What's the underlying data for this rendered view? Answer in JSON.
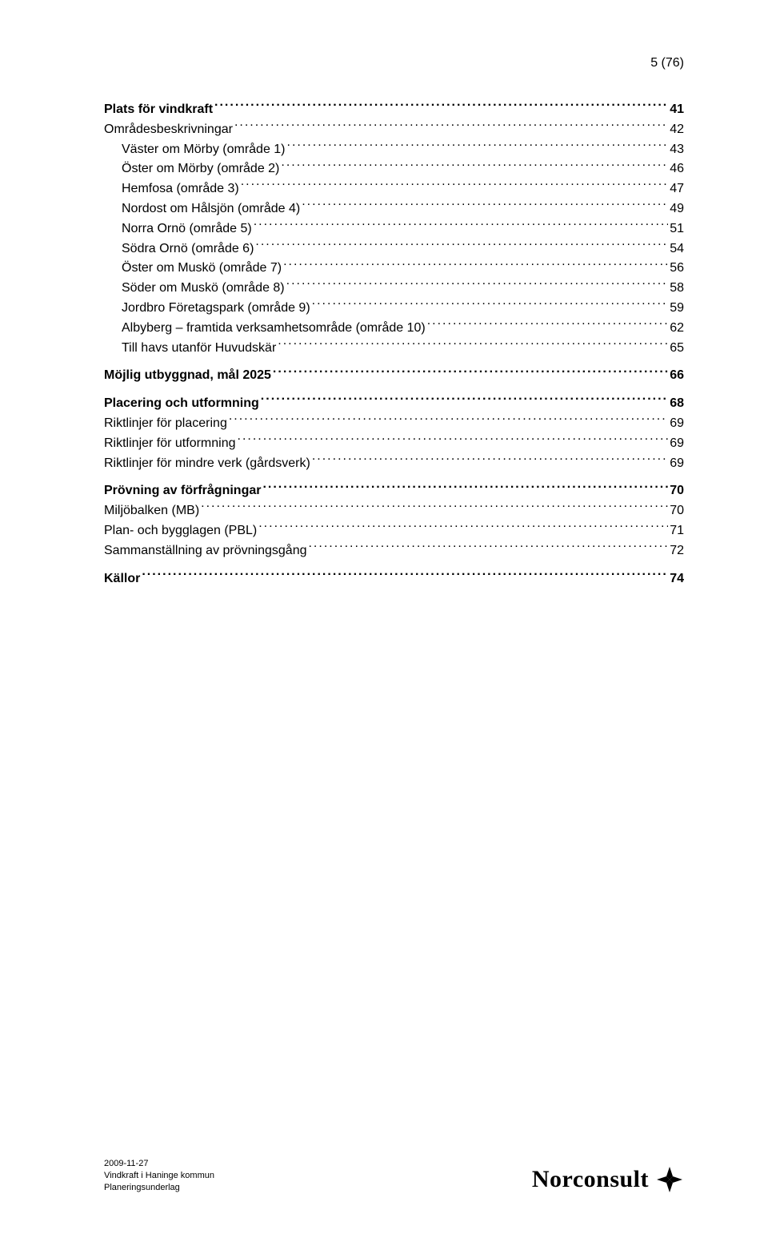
{
  "page_number": "5 (76)",
  "toc": [
    {
      "label": "Plats för vindkraft",
      "page": "41",
      "bold": true,
      "indent": 0
    },
    {
      "label": "Områdesbeskrivningar",
      "page": "42",
      "bold": false,
      "indent": 0
    },
    {
      "label": "Väster om Mörby (område 1)",
      "page": "43",
      "bold": false,
      "indent": 1
    },
    {
      "label": "Öster om Mörby (område 2)",
      "page": "46",
      "bold": false,
      "indent": 1
    },
    {
      "label": "Hemfosa (område 3)",
      "page": "47",
      "bold": false,
      "indent": 1
    },
    {
      "label": "Nordost om Hålsjön (område 4)",
      "page": "49",
      "bold": false,
      "indent": 1
    },
    {
      "label": "Norra Ornö (område 5)",
      "page": "51",
      "bold": false,
      "indent": 1
    },
    {
      "label": "Södra Ornö (område 6)",
      "page": "54",
      "bold": false,
      "indent": 1
    },
    {
      "label": "Öster om Muskö (område 7)",
      "page": "56",
      "bold": false,
      "indent": 1
    },
    {
      "label": "Söder om Muskö (område 8)",
      "page": "58",
      "bold": false,
      "indent": 1
    },
    {
      "label": "Jordbro Företagspark (område 9)",
      "page": "59",
      "bold": false,
      "indent": 1
    },
    {
      "label": "Albyberg – framtida verksamhetsområde (område 10)",
      "page": "62",
      "bold": false,
      "indent": 1
    },
    {
      "label": "Till havs utanför Huvudskär",
      "page": "65",
      "bold": false,
      "indent": 1
    },
    {
      "label": "Möjlig utbyggnad, mål 2025",
      "page": "66",
      "bold": true,
      "indent": 0
    },
    {
      "label": "Placering och utformning",
      "page": "68",
      "bold": true,
      "indent": 0
    },
    {
      "label": "Riktlinjer för placering",
      "page": "69",
      "bold": false,
      "indent": 0
    },
    {
      "label": "Riktlinjer för utformning",
      "page": "69",
      "bold": false,
      "indent": 0
    },
    {
      "label": "Riktlinjer för mindre verk (gårdsverk)",
      "page": "69",
      "bold": false,
      "indent": 0
    },
    {
      "label": "Prövning av förfrågningar",
      "page": "70",
      "bold": true,
      "indent": 0
    },
    {
      "label": "Miljöbalken (MB)",
      "page": "70",
      "bold": false,
      "indent": 0
    },
    {
      "label": "Plan- och bygglagen (PBL)",
      "page": "71",
      "bold": false,
      "indent": 0
    },
    {
      "label": "Sammanställning av prövningsgång",
      "page": "72",
      "bold": false,
      "indent": 0
    },
    {
      "label": "Källor",
      "page": "74",
      "bold": true,
      "indent": 0
    }
  ],
  "footer": {
    "date": "2009-11-27",
    "title": "Vindkraft i Haninge kommun",
    "subtitle": "Planeringsunderlag",
    "logo_text": "Norconsult",
    "logo_color": "#000000"
  },
  "colors": {
    "background": "#ffffff",
    "text": "#000000"
  },
  "typography": {
    "body_font": "Arial",
    "body_size_pt": 12,
    "footer_size_pt": 8,
    "logo_font": "Georgia",
    "logo_size_pt": 22
  }
}
